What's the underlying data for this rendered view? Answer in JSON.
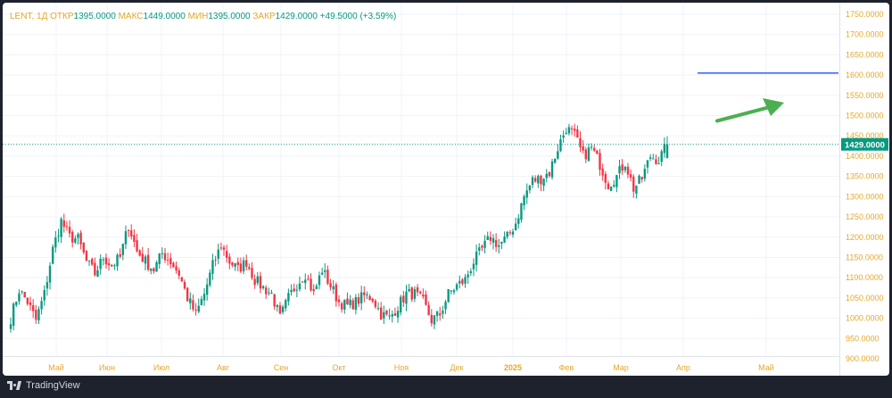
{
  "legend": {
    "symbol": "LENT, 1Д",
    "open_label": "ОТКР",
    "open": "1395.0000",
    "high_label": "МАКС",
    "high": "1449.0000",
    "low_label": "МИН",
    "low": "1395.0000",
    "close_label": "ЗАКР",
    "close": "1429.0000",
    "change": "+49.5000 (+3.59%)"
  },
  "branding": {
    "name": "TradingView"
  },
  "colors": {
    "up": "#089981",
    "down": "#f23645",
    "accent": "#e3a82b",
    "hline": "#2962ff",
    "arrow": "#4caf50",
    "grid": "#f0f3fa"
  },
  "chart_data": {
    "type": "candlestick",
    "symbol": "LENT",
    "interval": "1Д",
    "ylim": [
      900,
      1750
    ],
    "y_ticks": [
      "900.0000",
      "950.0000",
      "1000.0000",
      "1050.0000",
      "1100.0000",
      "1150.0000",
      "1200.0000",
      "1250.0000",
      "1300.0000",
      "1350.0000",
      "1400.0000",
      "1450.0000",
      "1500.0000",
      "1550.0000",
      "1600.0000",
      "1650.0000",
      "1700.0000",
      "1750.0000"
    ],
    "x_ticks": [
      "Май",
      "Июн",
      "Июл",
      "Авг",
      "Сен",
      "Окт",
      "Ноя",
      "Дек",
      "2025",
      "Фев",
      "Мар",
      "Апр",
      "Май"
    ],
    "bold_x_ticks": [
      "2025"
    ],
    "last_price": "1429.0000",
    "last_price_value": 1429,
    "horizontal_line": {
      "price": 1605
    },
    "arrow": {
      "from_price": 1487,
      "to_price": 1532
    },
    "close_anchors": [
      [
        0,
        1000
      ],
      [
        3,
        1070
      ],
      [
        6,
        1040
      ],
      [
        9,
        995
      ],
      [
        12,
        1060
      ],
      [
        15,
        1170
      ],
      [
        18,
        1240
      ],
      [
        21,
        1200
      ],
      [
        24,
        1195
      ],
      [
        27,
        1140
      ],
      [
        30,
        1110
      ],
      [
        33,
        1150
      ],
      [
        36,
        1130
      ],
      [
        39,
        1150
      ],
      [
        42,
        1230
      ],
      [
        45,
        1165
      ],
      [
        48,
        1140
      ],
      [
        51,
        1120
      ],
      [
        54,
        1160
      ],
      [
        57,
        1140
      ],
      [
        60,
        1110
      ],
      [
        63,
        1050
      ],
      [
        66,
        1010
      ],
      [
        69,
        1060
      ],
      [
        72,
        1130
      ],
      [
        75,
        1180
      ],
      [
        78,
        1140
      ],
      [
        81,
        1120
      ],
      [
        84,
        1140
      ],
      [
        87,
        1095
      ],
      [
        90,
        1075
      ],
      [
        93,
        1060
      ],
      [
        96,
        1000
      ],
      [
        99,
        1050
      ],
      [
        102,
        1085
      ],
      [
        105,
        1110
      ],
      [
        108,
        1060
      ],
      [
        111,
        1120
      ],
      [
        114,
        1080
      ],
      [
        117,
        1040
      ],
      [
        120,
        1030
      ],
      [
        123,
        1040
      ],
      [
        126,
        1055
      ],
      [
        129,
        1050
      ],
      [
        132,
        1010
      ],
      [
        135,
        1000
      ],
      [
        138,
        1030
      ],
      [
        141,
        1060
      ],
      [
        144,
        1060
      ],
      [
        147,
        1040
      ],
      [
        150,
        995
      ],
      [
        153,
        1010
      ],
      [
        156,
        1060
      ],
      [
        159,
        1080
      ],
      [
        162,
        1095
      ],
      [
        165,
        1140
      ],
      [
        168,
        1170
      ],
      [
        171,
        1200
      ],
      [
        174,
        1180
      ],
      [
        177,
        1200
      ],
      [
        180,
        1235
      ],
      [
        183,
        1300
      ],
      [
        186,
        1340
      ],
      [
        189,
        1345
      ],
      [
        192,
        1360
      ],
      [
        195,
        1420
      ],
      [
        198,
        1470
      ],
      [
        201,
        1450
      ],
      [
        204,
        1400
      ],
      [
        207,
        1420
      ],
      [
        210,
        1380
      ],
      [
        213,
        1330
      ],
      [
        216,
        1350
      ],
      [
        219,
        1385
      ],
      [
        222,
        1320
      ],
      [
        225,
        1345
      ],
      [
        228,
        1400
      ],
      [
        231,
        1390
      ],
      [
        234,
        1429
      ]
    ]
  }
}
